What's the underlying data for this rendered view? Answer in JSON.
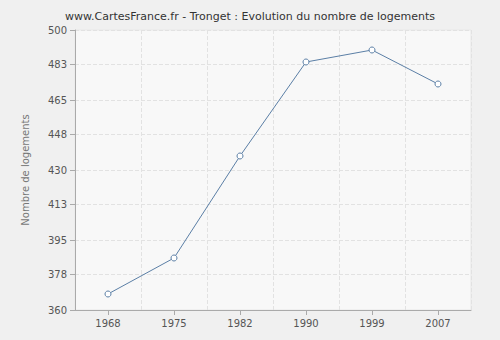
{
  "chart_data": {
    "type": "line",
    "title": "www.CartesFrance.fr - Tronget : Evolution du nombre de logements",
    "y_label": "Nombre de logements",
    "categories": [
      "1968",
      "1975",
      "1982",
      "1990",
      "1999",
      "2007"
    ],
    "values": [
      368,
      386,
      437,
      484,
      490,
      473
    ],
    "color": "#5b7fa6",
    "marker": "circle",
    "ylim": [
      360,
      500
    ],
    "yticks": [
      360,
      378,
      395,
      413,
      430,
      448,
      465,
      483,
      500
    ],
    "grid": true
  }
}
